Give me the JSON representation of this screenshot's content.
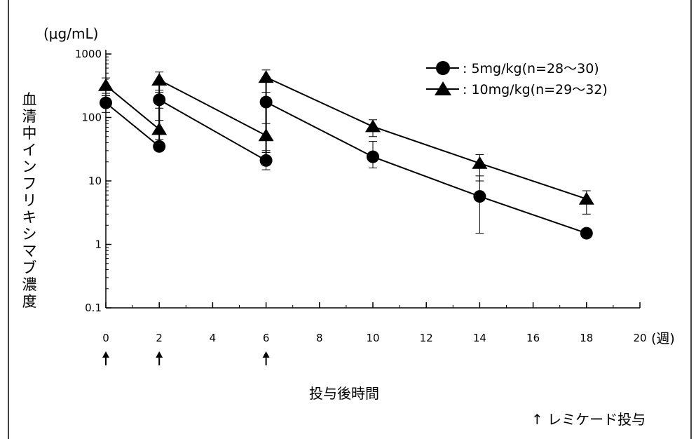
{
  "chart_data": {
    "type": "line",
    "y_unit": "(μg/mL)",
    "xlabel": "投与後時間",
    "x_unit": "(週)",
    "ylabel": "血清中インフリキシマブ濃度",
    "y_scale": "log",
    "ylim": [
      0.1,
      1000
    ],
    "xlim": [
      0,
      20
    ],
    "x_ticks": [
      0,
      2,
      4,
      6,
      8,
      10,
      12,
      14,
      16,
      18,
      20
    ],
    "y_ticks": [
      0.1,
      1,
      10,
      100,
      1000
    ],
    "y_tick_labels": [
      "0.1",
      "1",
      "10",
      "100",
      "1000"
    ],
    "legend_position": "top-right",
    "series": [
      {
        "name": "5mg/kg(n=28〜30)",
        "marker": "circle",
        "legend_label": ": 5mg/kg(n=28〜30)",
        "points": [
          {
            "x": 0,
            "y": 170,
            "err_low": 120,
            "err_high": 240
          },
          {
            "x": 2,
            "y": 35
          },
          {
            "x": 2,
            "y": 190,
            "err_low": 140,
            "err_high": 270
          },
          {
            "x": 6,
            "y": 21,
            "err_low": 15,
            "err_high": 28
          },
          {
            "x": 6,
            "y": 175,
            "err_low": 20,
            "err_high": 250
          },
          {
            "x": 10,
            "y": 24,
            "err_low": 16,
            "err_high": 42
          },
          {
            "x": 14,
            "y": 5.7,
            "err_low": 1.5,
            "err_high": 12
          },
          {
            "x": 18,
            "y": 1.5
          }
        ]
      },
      {
        "name": "10mg/kg(n=29〜32)",
        "marker": "triangle",
        "legend_label": ": 10mg/kg(n=29〜32)",
        "points": [
          {
            "x": 0,
            "y": 320,
            "err_low": 220,
            "err_high": 420
          },
          {
            "x": 2,
            "y": 65,
            "err_low": 45,
            "err_high": 90
          },
          {
            "x": 2,
            "y": 390,
            "err_low": 250,
            "err_high": 520
          },
          {
            "x": 6,
            "y": 52,
            "err_low": 30,
            "err_high": 80
          },
          {
            "x": 6,
            "y": 430,
            "err_low": 250,
            "err_high": 560
          },
          {
            "x": 10,
            "y": 72,
            "err_low": 50,
            "err_high": 92
          },
          {
            "x": 14,
            "y": 19,
            "err_low": 10,
            "err_high": 26
          },
          {
            "x": 18,
            "y": 5.2,
            "err_low": 3,
            "err_high": 7
          }
        ]
      }
    ],
    "dose_weeks": [
      0,
      2,
      6
    ],
    "dose_arrow": "↑",
    "dose_legend": "レミケード投与"
  }
}
